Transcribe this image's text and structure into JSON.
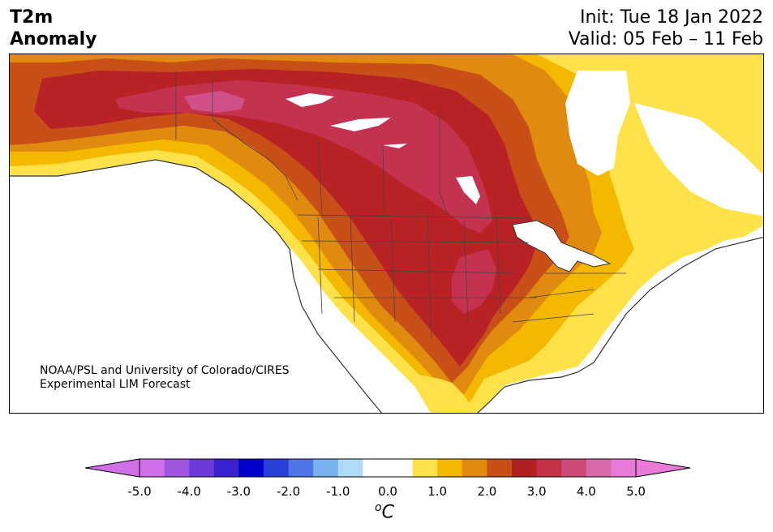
{
  "header": {
    "title_line1": "T2m",
    "title_line2": "Anomaly",
    "init": "Init: Tue 18 Jan 2022",
    "valid": "Valid: 05 Feb – 11 Feb"
  },
  "credit": {
    "line1": "NOAA/PSL and University of Colorado/CIRES",
    "line2": "Experimental LIM Forecast"
  },
  "colorbar": {
    "unit_base": "C",
    "unit_sup": "o",
    "ticks": [
      "-5.0",
      "-4.0",
      "-3.0",
      "-2.0",
      "-1.0",
      "0.0",
      "1.0",
      "2.0",
      "3.0",
      "4.0",
      "5.0"
    ],
    "colors": [
      "#d070e8",
      "#9f55e0",
      "#6c3ad8",
      "#3a22d0",
      "#0000cc",
      "#2a3ed8",
      "#4e74e6",
      "#78b0f0",
      "#aedcf8",
      "#ffffff",
      "#ffffff",
      "#ffe24a",
      "#f4b800",
      "#e08a10",
      "#c85018",
      "#b02020",
      "#c43248",
      "#cc4a78",
      "#d86aa8",
      "#e67ad6"
    ],
    "under_color": "#d070e8",
    "over_color": "#e87ad8"
  },
  "map": {
    "region": "North America",
    "fill_levels": {
      "c1": "#ffe24a",
      "c2": "#f4b800",
      "c3": "#e08a10",
      "c4": "#c85018",
      "c5": "#b82224",
      "c6": "#c43250",
      "c7": "#d0508a"
    }
  }
}
